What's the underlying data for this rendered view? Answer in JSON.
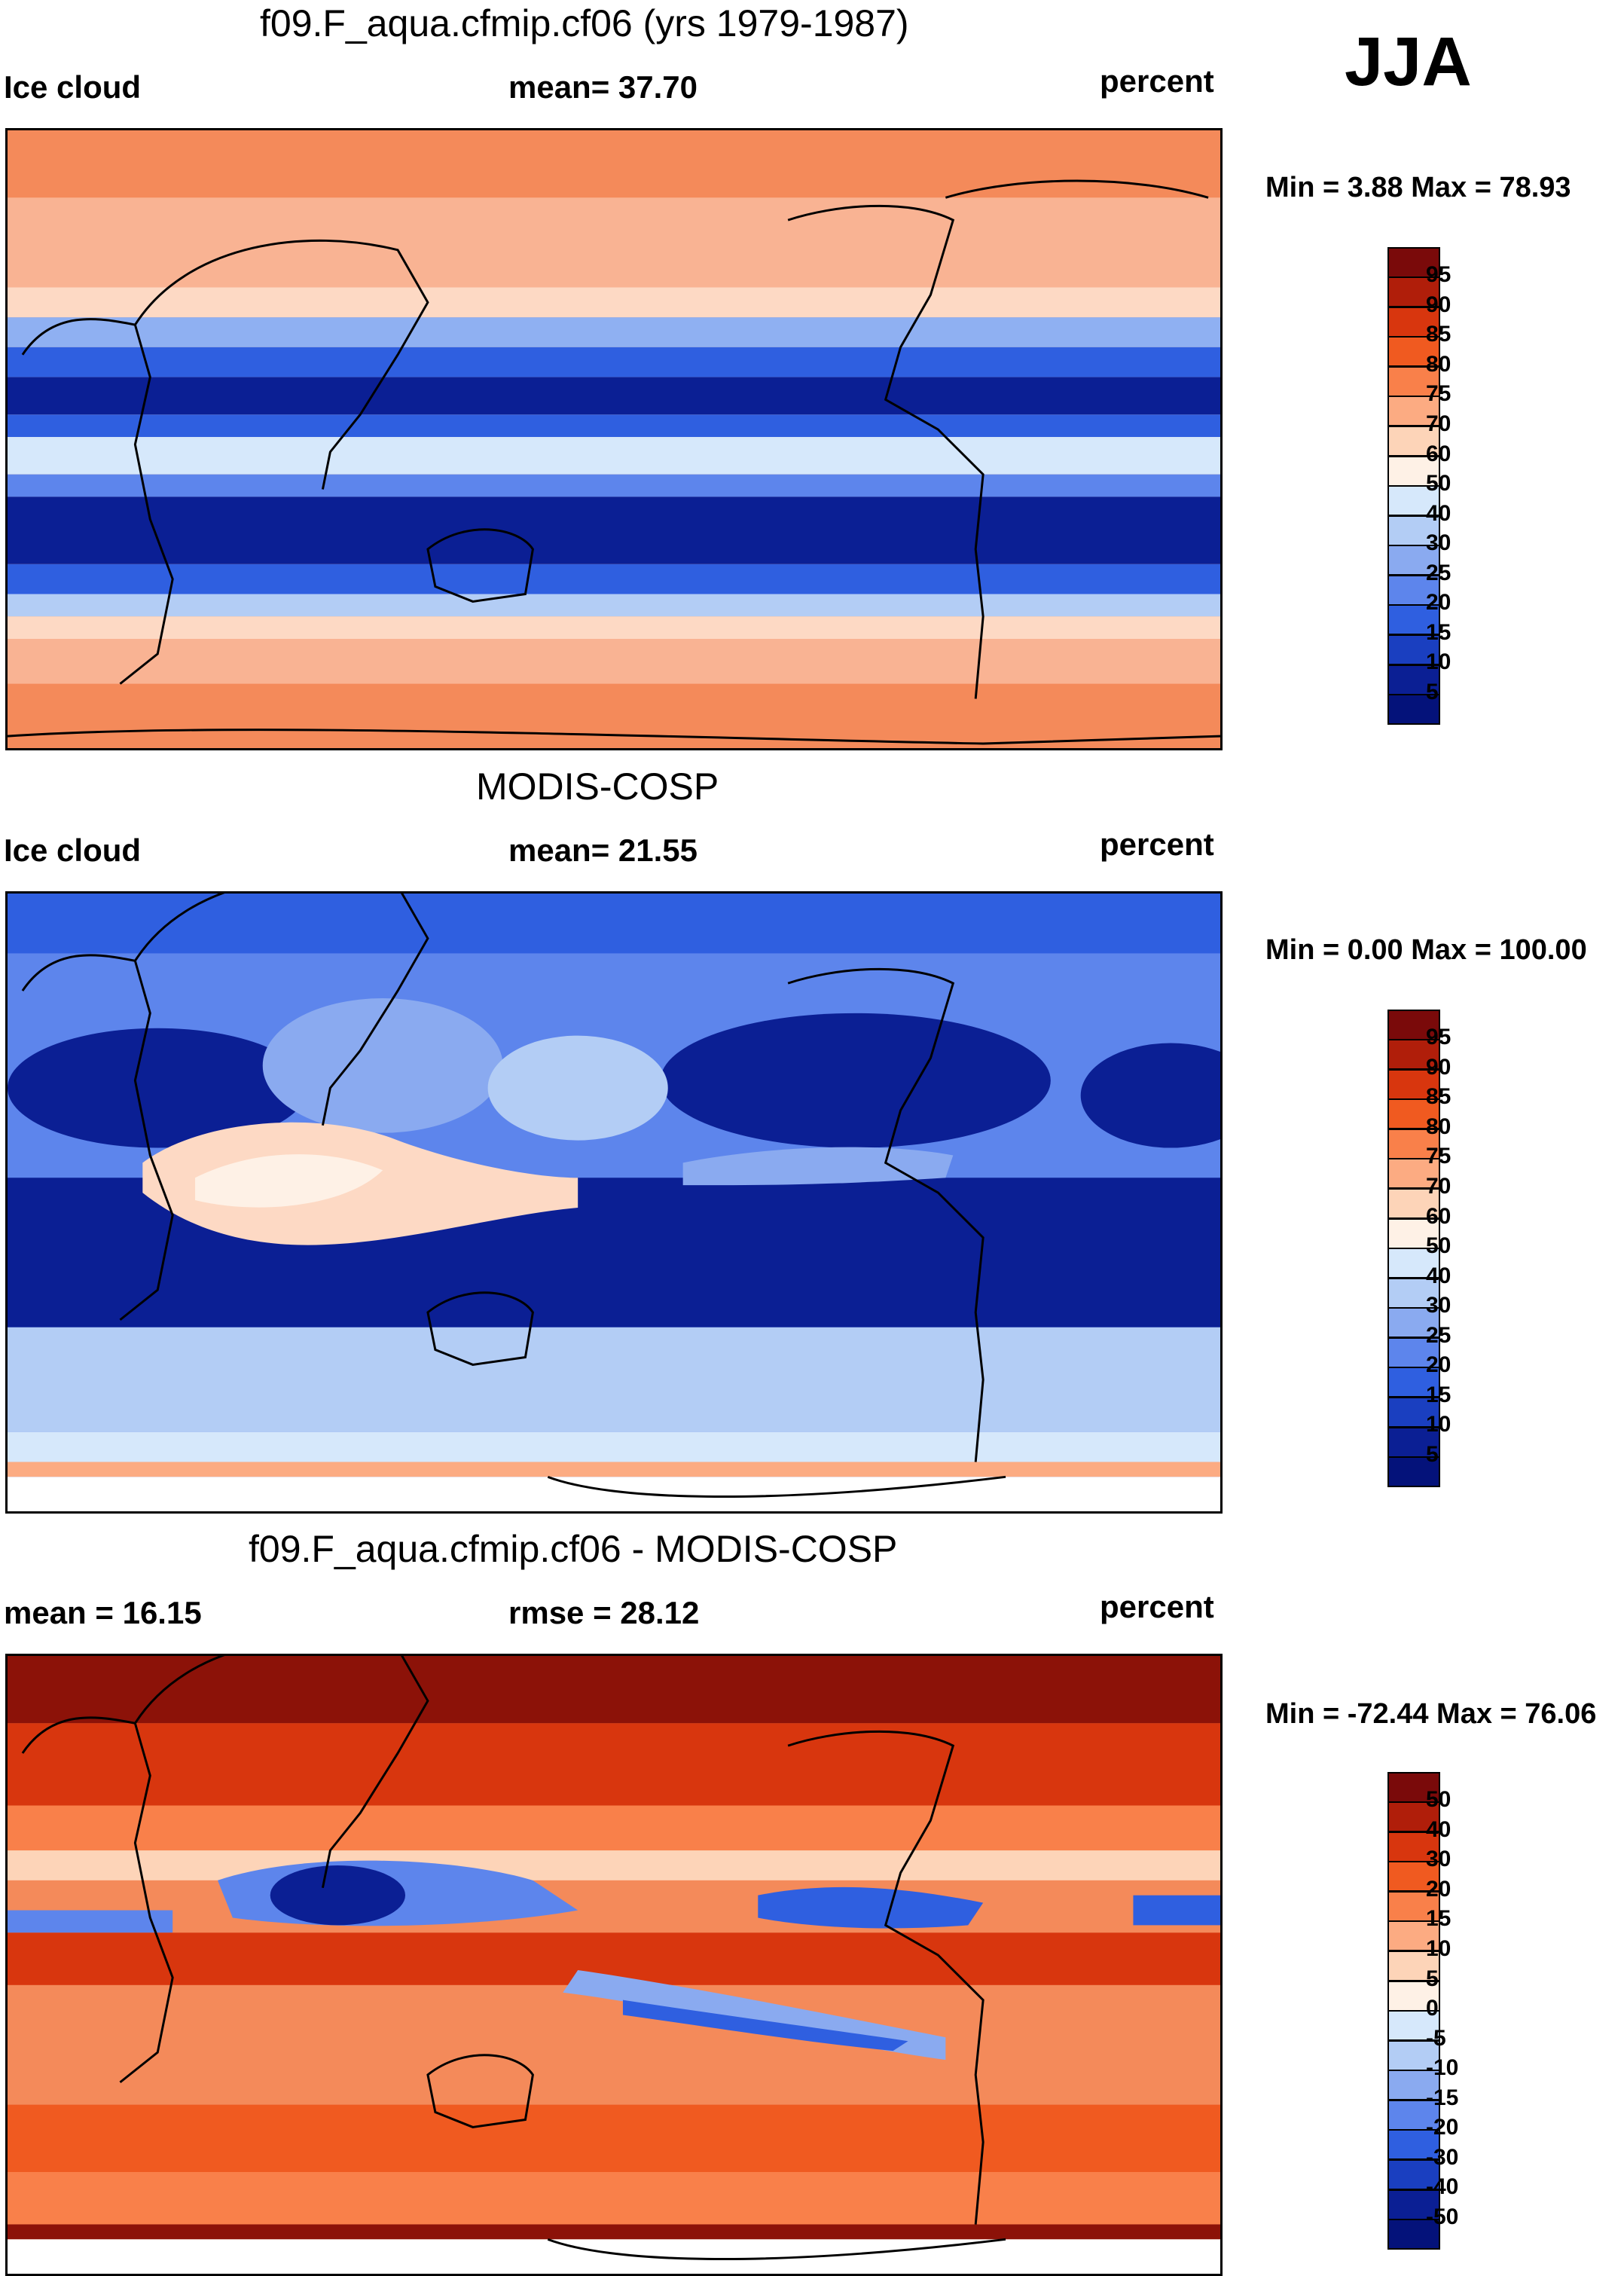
{
  "season": "JJA",
  "units": "percent",
  "panels": [
    {
      "title": "f09.F_aqua.cfmip.cf06 (yrs 1979-1987)",
      "left_label": "Ice cloud",
      "center_label": "mean=  37.70",
      "right_label": "percent",
      "minmax_label": "Min =   3.88 Max =  78.93",
      "colorbar_ticks": [
        "95",
        "90",
        "85",
        "80",
        "75",
        "70",
        "60",
        "50",
        "40",
        "30",
        "25",
        "20",
        "15",
        "10",
        "5"
      ]
    },
    {
      "title": "MODIS-COSP",
      "left_label": "Ice cloud",
      "center_label": "mean=  21.55",
      "right_label": "percent",
      "minmax_label": "Min =   0.00 Max = 100.00",
      "colorbar_ticks": [
        "95",
        "90",
        "85",
        "80",
        "75",
        "70",
        "60",
        "50",
        "40",
        "30",
        "25",
        "20",
        "15",
        "10",
        "5"
      ]
    },
    {
      "title": "f09.F_aqua.cfmip.cf06 - MODIS-COSP",
      "left_label": "mean =  16.15",
      "center_label": "rmse =  28.12",
      "right_label": "percent",
      "minmax_label": "Min = -72.44 Max =  76.06",
      "colorbar_ticks": [
        "50",
        "40",
        "30",
        "20",
        "15",
        "10",
        "5",
        "0",
        "-5",
        "-10",
        "-15",
        "-20",
        "-30",
        "-40",
        "-50"
      ]
    }
  ],
  "colors": {
    "cbar_abs": [
      "#7a0a0a",
      "#b01e0a",
      "#d8360e",
      "#f05a20",
      "#f9804a",
      "#fcab82",
      "#fdd4b8",
      "#fef1e6",
      "#d6e8fb",
      "#b3cdf5",
      "#8aaaf0",
      "#5d85ec",
      "#2f5fe0",
      "#1a3fc0",
      "#0b1f94",
      "#04127a"
    ],
    "cbar_diff": [
      "#7a0a0a",
      "#b01e0a",
      "#d8360e",
      "#f05a20",
      "#f9804a",
      "#fcab82",
      "#fdd4b8",
      "#fef1e6",
      "#d6e8fb",
      "#b3cdf5",
      "#8aaaf0",
      "#5d85ec",
      "#2f5fe0",
      "#1a3fc0",
      "#0b1f94",
      "#04127a"
    ]
  }
}
